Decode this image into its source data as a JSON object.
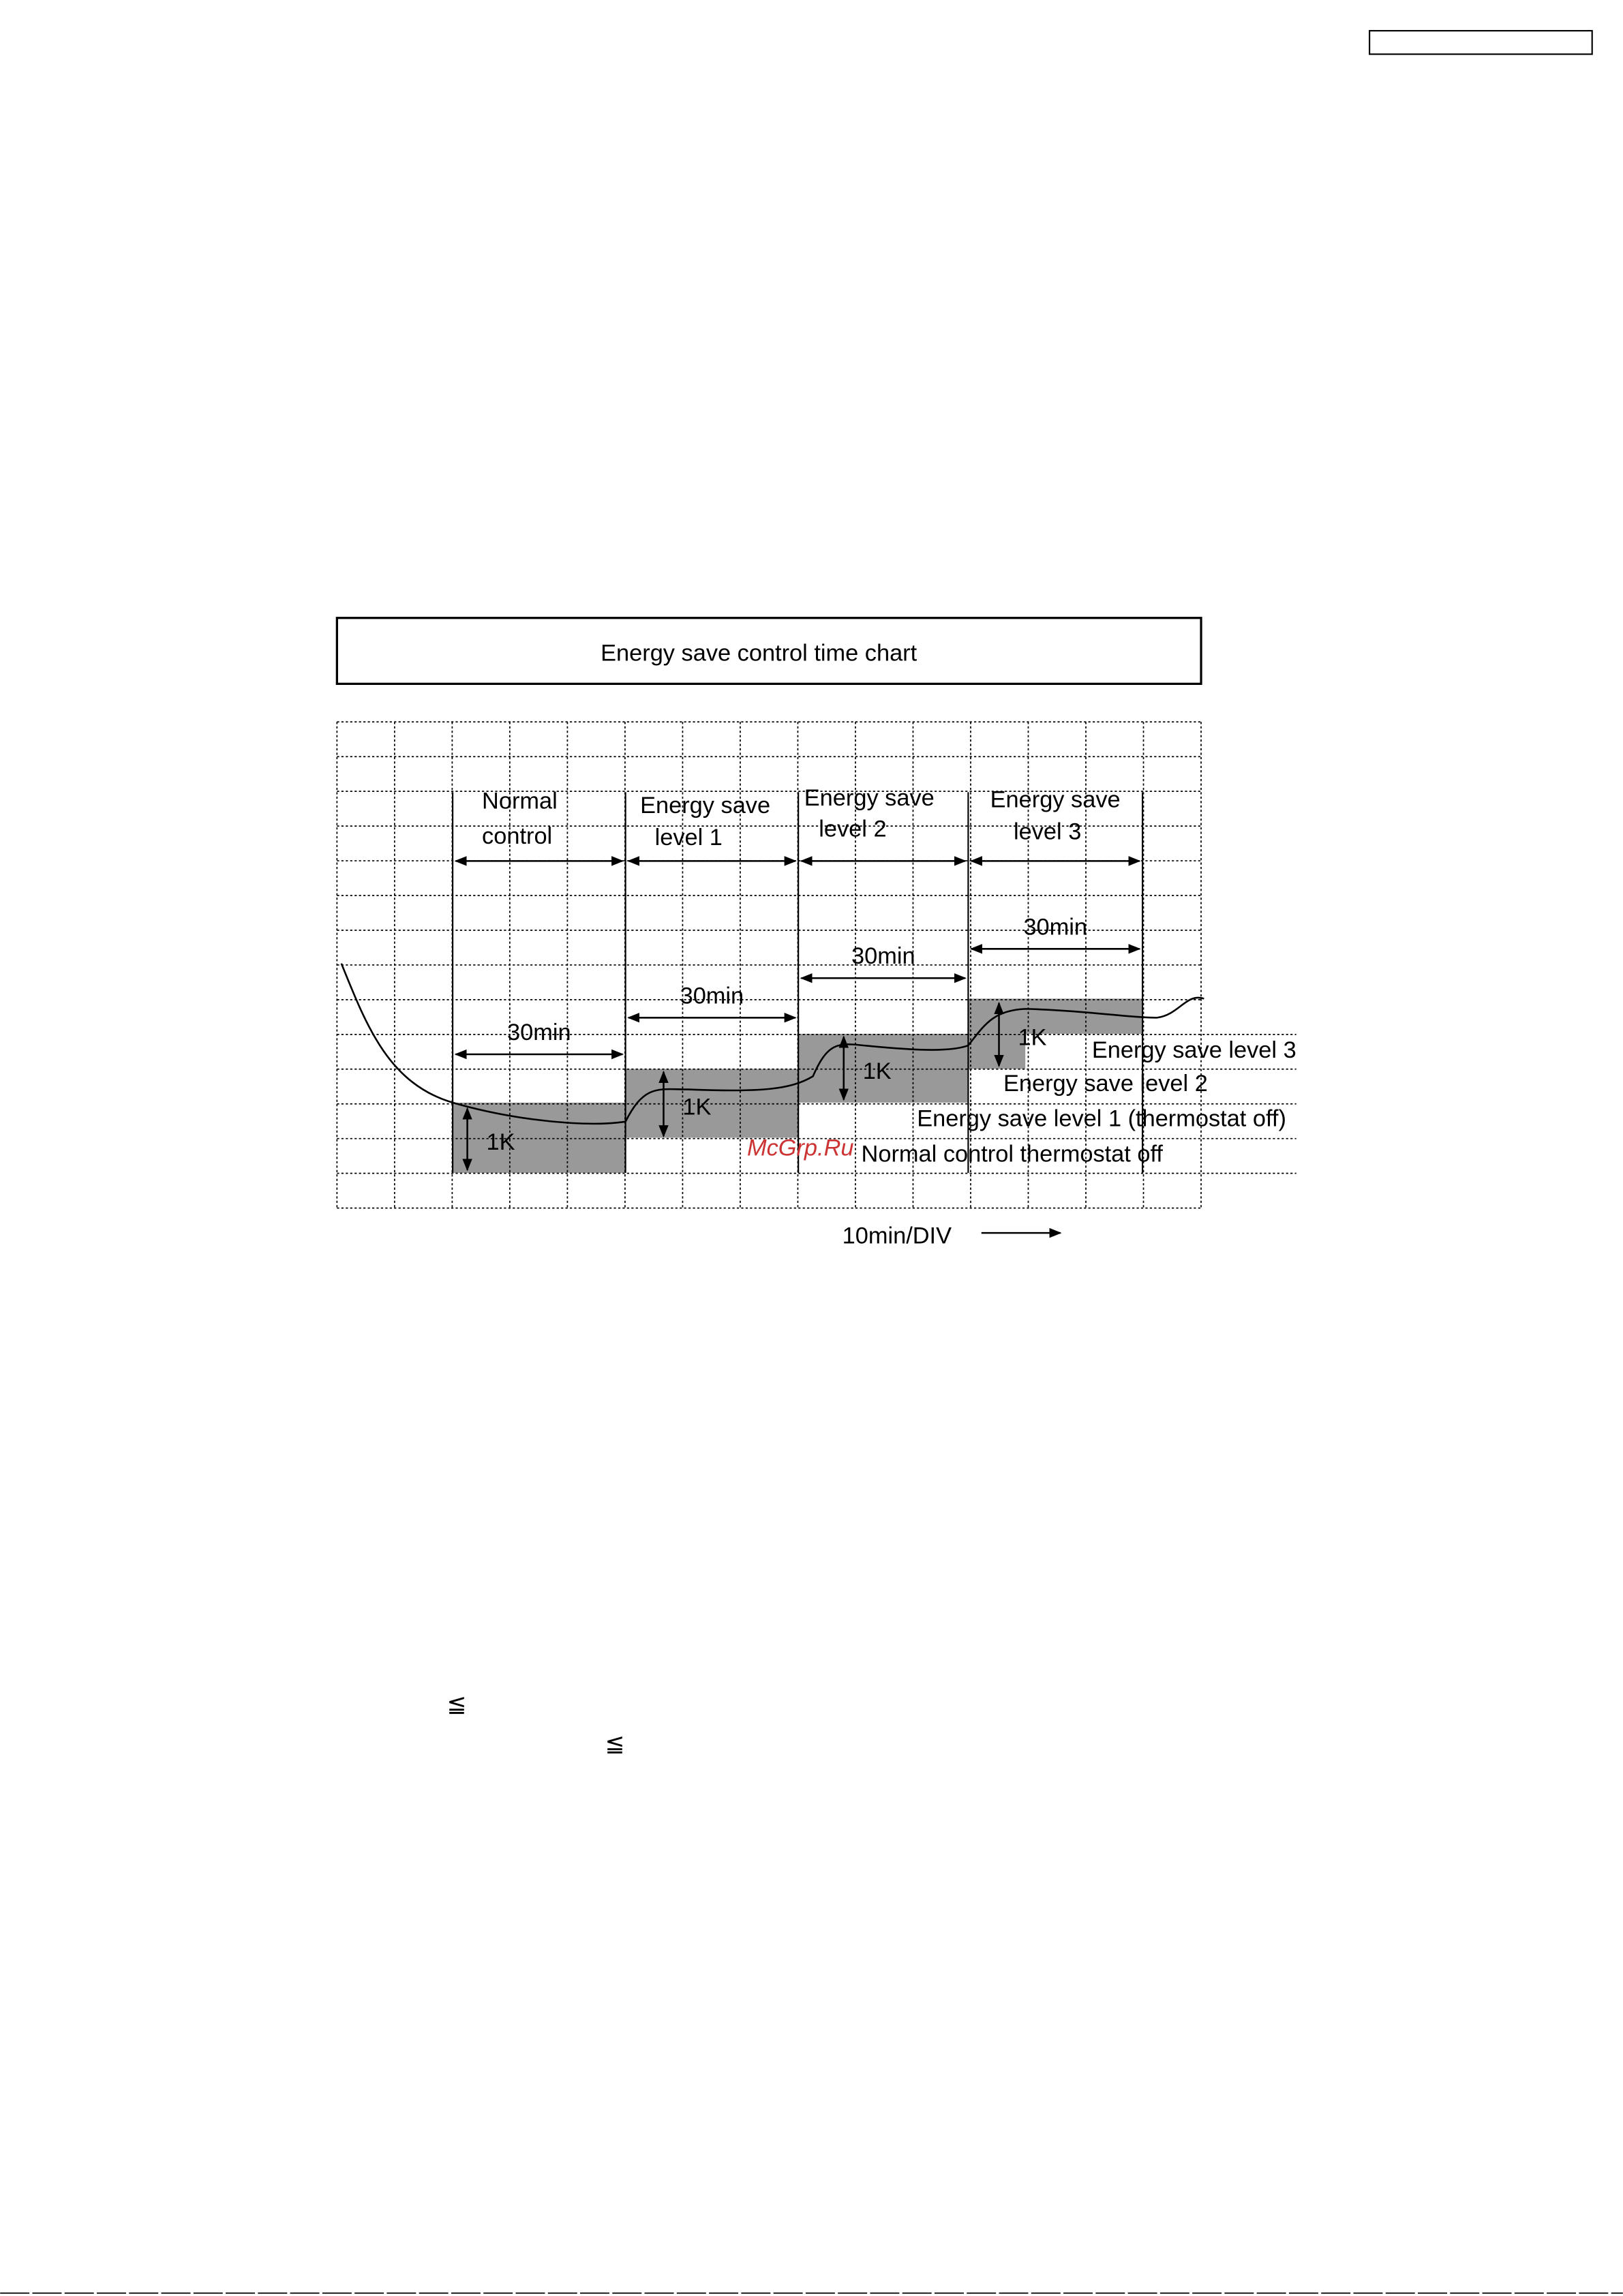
{
  "chart_title": "Energy save control time chart",
  "phases": [
    [
      "Normal",
      "control"
    ],
    [
      "Energy save",
      "level 1"
    ],
    [
      "Energy save",
      "level 2"
    ],
    [
      "Energy save",
      "level 3"
    ]
  ],
  "durations": [
    "30min",
    "30min",
    "30min",
    "30min"
  ],
  "steps": [
    "1K",
    "1K",
    "1K",
    "1K"
  ],
  "thresholds": [
    "Energy save level 3",
    "Energy save level 2",
    "Energy save level 1 (thermostat off)",
    "Normal control thermostat off"
  ],
  "time_scale": "10min/DIV",
  "watermark": "McGrp.Ru",
  "symbols": [
    "≦",
    "≦"
  ]
}
